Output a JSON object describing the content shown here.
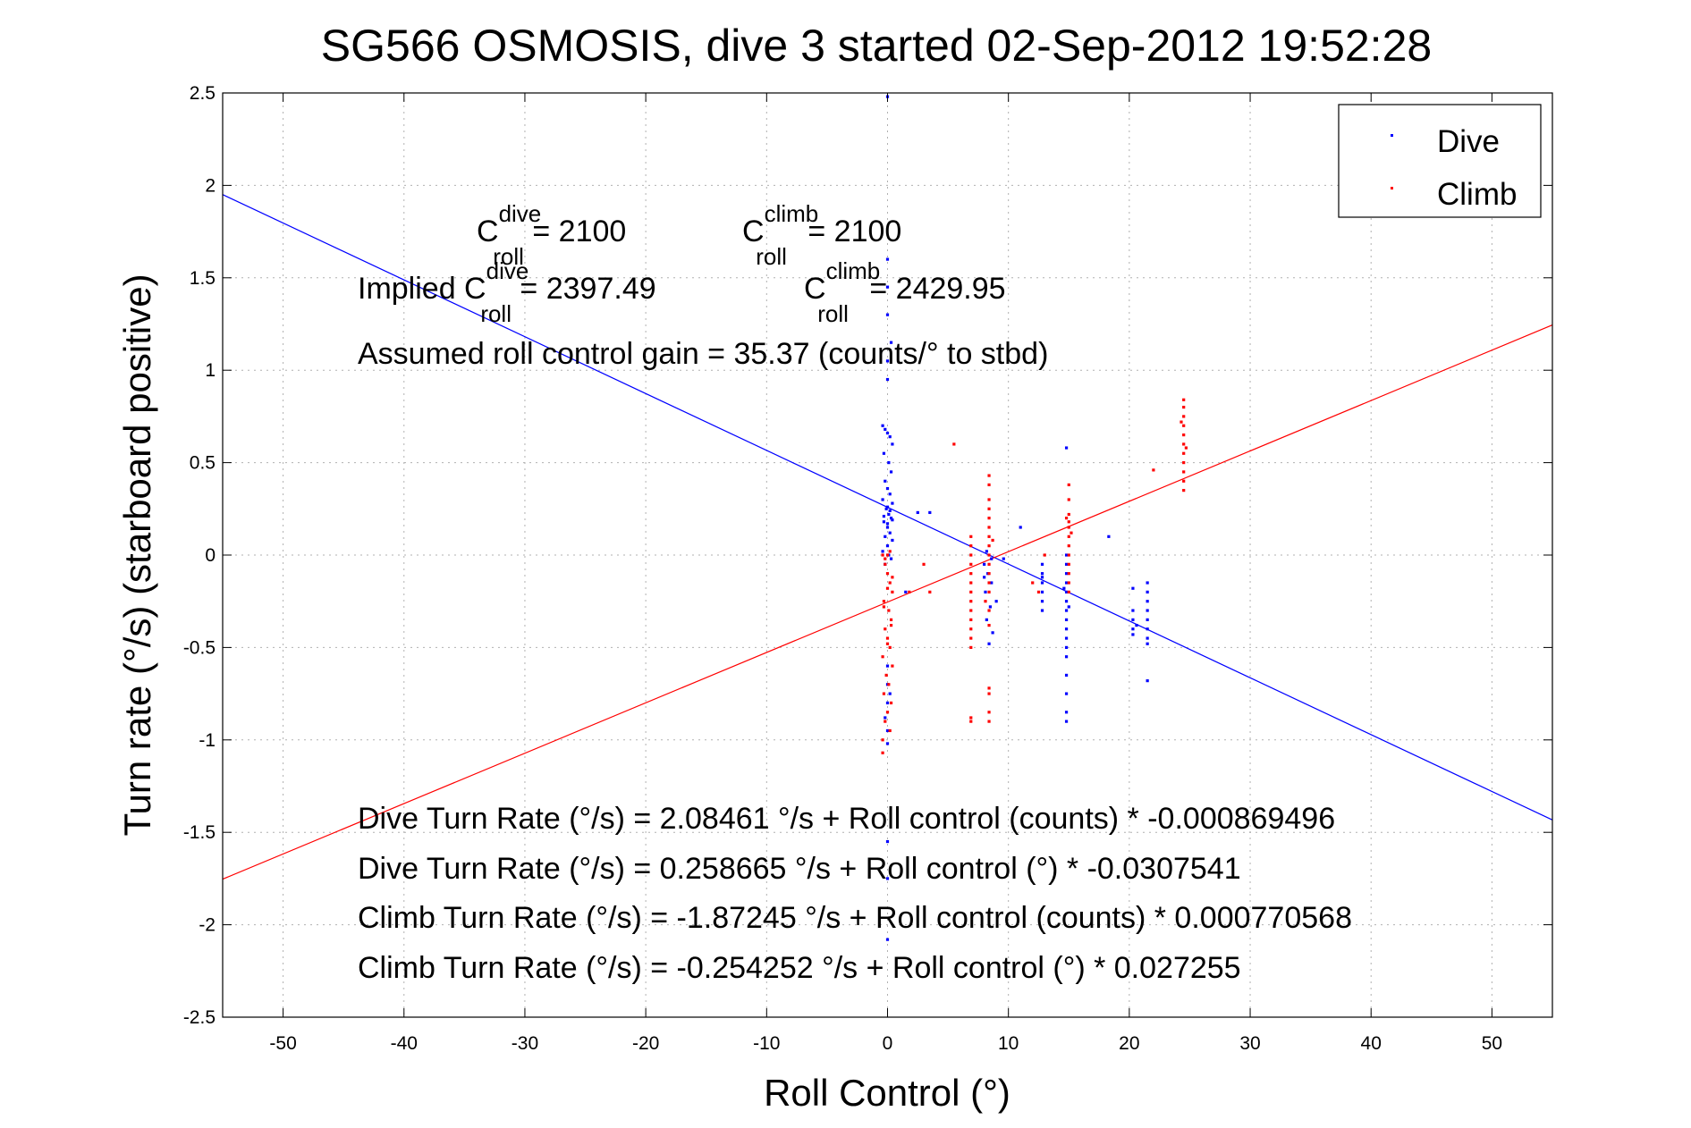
{
  "chart_data": {
    "type": "scatter",
    "title": "SG566 OSMOSIS, dive 3 started 02-Sep-2012 19:52:28",
    "xlabel": "Roll Control (°)",
    "ylabel": "Turn rate (°/s) (starboard positive)",
    "xlim": [
      -55,
      55
    ],
    "ylim": [
      -2.5,
      2.5
    ],
    "xticks": [
      "-50",
      "-40",
      "-30",
      "-20",
      "-10",
      "0",
      "10",
      "20",
      "30",
      "40",
      "50"
    ],
    "yticks": [
      "2.5",
      "2",
      "1.5",
      "1",
      "0.5",
      "0",
      "-0.5",
      "-1",
      "-1.5",
      "-2",
      "-2.5"
    ],
    "grid": true,
    "legend_position": "top-right",
    "series": [
      {
        "name": "Dive",
        "color": "#0000ff",
        "points": [
          [
            0,
            2.48
          ],
          [
            0,
            1.6
          ],
          [
            0,
            1.45
          ],
          [
            0,
            1.3
          ],
          [
            0.3,
            1.15
          ],
          [
            0,
            1.05
          ],
          [
            0,
            0.95
          ],
          [
            -0.4,
            0.7
          ],
          [
            -0.2,
            0.68
          ],
          [
            0,
            0.66
          ],
          [
            0.2,
            0.64
          ],
          [
            0.4,
            0.6
          ],
          [
            -0.3,
            0.55
          ],
          [
            0.1,
            0.5
          ],
          [
            0.3,
            0.45
          ],
          [
            -0.2,
            0.4
          ],
          [
            0,
            0.36
          ],
          [
            0.2,
            0.33
          ],
          [
            -0.4,
            0.3
          ],
          [
            0.4,
            0.28
          ],
          [
            -0.1,
            0.25
          ],
          [
            0.1,
            0.22
          ],
          [
            0.3,
            0.2
          ],
          [
            -0.3,
            0.18
          ],
          [
            0,
            0.15
          ],
          [
            0.2,
            0.12
          ],
          [
            -0.2,
            0.1
          ],
          [
            0.4,
            0.08
          ],
          [
            0,
            0.05
          ],
          [
            -0.4,
            0.02
          ],
          [
            0.1,
            0
          ],
          [
            0.3,
            -0.02
          ],
          [
            -0.2,
            -0.05
          ],
          [
            0,
            0.26
          ],
          [
            0.2,
            0.24
          ],
          [
            -0.3,
            0.21
          ],
          [
            0.4,
            0.19
          ],
          [
            0,
            0.17
          ],
          [
            0,
            -0.6
          ],
          [
            0,
            -0.7
          ],
          [
            0,
            -0.8
          ],
          [
            -0.2,
            -0.88
          ],
          [
            0,
            -0.95
          ],
          [
            0,
            -1.02
          ],
          [
            0.2,
            -0.75
          ],
          [
            0,
            -1.55
          ],
          [
            0,
            -1.75
          ],
          [
            0,
            -2.08
          ],
          [
            2.5,
            0.23
          ],
          [
            3.5,
            0.23
          ],
          [
            1.5,
            -0.2
          ],
          [
            8,
            -0.05
          ],
          [
            8.3,
            -0.1
          ],
          [
            8.6,
            -0.15
          ],
          [
            8.1,
            -0.2
          ],
          [
            8.5,
            -0.28
          ],
          [
            8.2,
            -0.35
          ],
          [
            8.7,
            -0.42
          ],
          [
            8.4,
            -0.48
          ],
          [
            8.6,
            -0.02
          ],
          [
            8.2,
            0.02
          ],
          [
            8,
            -0.12
          ],
          [
            9,
            -0.25
          ],
          [
            9.6,
            -0.02
          ],
          [
            11,
            0.15
          ],
          [
            12.8,
            -0.05
          ],
          [
            12.8,
            -0.1
          ],
          [
            12.8,
            -0.15
          ],
          [
            12.8,
            -0.2
          ],
          [
            12.8,
            -0.25
          ],
          [
            12.8,
            -0.3
          ],
          [
            12.8,
            -0.12
          ],
          [
            14.8,
            0.58
          ],
          [
            14.8,
            0.0
          ],
          [
            14.8,
            -0.05
          ],
          [
            14.8,
            -0.1
          ],
          [
            14.8,
            -0.15
          ],
          [
            14.8,
            -0.2
          ],
          [
            14.8,
            -0.25
          ],
          [
            14.8,
            -0.3
          ],
          [
            14.8,
            -0.35
          ],
          [
            14.8,
            -0.4
          ],
          [
            14.8,
            -0.45
          ],
          [
            14.8,
            -0.5
          ],
          [
            14.8,
            -0.55
          ],
          [
            14.8,
            -0.65
          ],
          [
            14.8,
            -0.75
          ],
          [
            14.8,
            -0.85
          ],
          [
            14.8,
            -0.9
          ],
          [
            14.6,
            -0.18
          ],
          [
            15,
            -0.28
          ],
          [
            18.3,
            0.1
          ],
          [
            20.3,
            -0.18
          ],
          [
            20.3,
            -0.3
          ],
          [
            20.3,
            -0.35
          ],
          [
            20.3,
            -0.4
          ],
          [
            20.3,
            -0.43
          ],
          [
            20.6,
            -0.38
          ],
          [
            21.5,
            -0.15
          ],
          [
            21.5,
            -0.2
          ],
          [
            21.5,
            -0.25
          ],
          [
            21.5,
            -0.3
          ],
          [
            21.5,
            -0.35
          ],
          [
            21.5,
            -0.4
          ],
          [
            21.5,
            -0.45
          ],
          [
            21.5,
            -0.48
          ],
          [
            21.5,
            -0.68
          ]
        ]
      },
      {
        "name": "Climb",
        "color": "#ff0000",
        "points": [
          [
            -0.4,
            -0.0
          ],
          [
            -0.2,
            -0.05
          ],
          [
            0,
            -0.1
          ],
          [
            0.2,
            -0.15
          ],
          [
            0.4,
            -0.2
          ],
          [
            -0.3,
            -0.25
          ],
          [
            0.1,
            -0.3
          ],
          [
            0.3,
            -0.35
          ],
          [
            -0.2,
            -0.4
          ],
          [
            0,
            -0.45
          ],
          [
            0.2,
            -0.5
          ],
          [
            -0.4,
            -0.55
          ],
          [
            0.4,
            -0.6
          ],
          [
            -0.1,
            -0.65
          ],
          [
            0.1,
            -0.7
          ],
          [
            -0.3,
            -0.75
          ],
          [
            0.3,
            -0.8
          ],
          [
            0,
            -0.85
          ],
          [
            -0.2,
            -0.9
          ],
          [
            0.2,
            -0.95
          ],
          [
            -0.4,
            -1.0
          ],
          [
            -0.4,
            -1.07
          ],
          [
            0,
            0.0
          ],
          [
            0.2,
            0.02
          ],
          [
            -0.2,
            -0.02
          ],
          [
            0.4,
            -0.12
          ],
          [
            0,
            -0.18
          ],
          [
            -0.3,
            -0.28
          ],
          [
            0.3,
            -0.38
          ],
          [
            0,
            -0.48
          ],
          [
            1.8,
            -0.2
          ],
          [
            3,
            -0.05
          ],
          [
            3.5,
            -0.2
          ],
          [
            5.5,
            0.6
          ],
          [
            6.9,
            0.1
          ],
          [
            6.9,
            0.05
          ],
          [
            6.9,
            0.0
          ],
          [
            6.9,
            -0.05
          ],
          [
            6.9,
            -0.1
          ],
          [
            6.9,
            -0.15
          ],
          [
            6.9,
            -0.2
          ],
          [
            6.9,
            -0.25
          ],
          [
            6.9,
            -0.3
          ],
          [
            6.9,
            -0.35
          ],
          [
            6.9,
            -0.4
          ],
          [
            6.9,
            -0.45
          ],
          [
            6.9,
            -0.5
          ],
          [
            6.9,
            -0.88
          ],
          [
            6.9,
            -0.9
          ],
          [
            8.4,
            0.43
          ],
          [
            8.4,
            0.38
          ],
          [
            8.4,
            0.3
          ],
          [
            8.4,
            0.25
          ],
          [
            8.4,
            0.2
          ],
          [
            8.4,
            0.15
          ],
          [
            8.4,
            0.1
          ],
          [
            8.4,
            0.05
          ],
          [
            8.4,
            0.0
          ],
          [
            8.4,
            -0.05
          ],
          [
            8.4,
            -0.1
          ],
          [
            8.4,
            -0.15
          ],
          [
            8.4,
            -0.2
          ],
          [
            8.4,
            -0.3
          ],
          [
            8.4,
            -0.38
          ],
          [
            8.4,
            -0.72
          ],
          [
            8.4,
            -0.75
          ],
          [
            8.4,
            -0.85
          ],
          [
            8.4,
            -0.9
          ],
          [
            8.1,
            -0.25
          ],
          [
            8.7,
            0.08
          ],
          [
            12,
            -0.15
          ],
          [
            12.5,
            -0.2
          ],
          [
            13,
            0.0
          ],
          [
            15,
            0.38
          ],
          [
            15,
            0.3
          ],
          [
            15,
            0.22
          ],
          [
            15,
            0.18
          ],
          [
            15,
            0.15
          ],
          [
            15,
            0.1
          ],
          [
            15,
            0.05
          ],
          [
            15,
            0.0
          ],
          [
            15,
            -0.05
          ],
          [
            15,
            -0.1
          ],
          [
            15,
            -0.15
          ],
          [
            15,
            -0.2
          ],
          [
            15.2,
            0.12
          ],
          [
            14.8,
            0.2
          ],
          [
            22,
            0.46
          ],
          [
            24.5,
            0.84
          ],
          [
            24.5,
            0.8
          ],
          [
            24.5,
            0.75
          ],
          [
            24.5,
            0.7
          ],
          [
            24.5,
            0.65
          ],
          [
            24.5,
            0.6
          ],
          [
            24.5,
            0.55
          ],
          [
            24.5,
            0.5
          ],
          [
            24.5,
            0.45
          ],
          [
            24.5,
            0.4
          ],
          [
            24.5,
            0.35
          ],
          [
            24.3,
            0.72
          ],
          [
            24.7,
            0.58
          ]
        ]
      }
    ],
    "fit_lines": [
      {
        "name": "Dive fit",
        "color": "#0000ff",
        "intercept": 0.258665,
        "slope": -0.0307541
      },
      {
        "name": "Climb fit",
        "color": "#ff0000",
        "intercept": -0.254252,
        "slope": 0.027255
      }
    ]
  },
  "annotations": {
    "croll_dive_base": "C",
    "croll_dive_sup": "dive",
    "croll_dive_sub": "roll",
    "croll_dive_val": " = 2100",
    "croll_climb_base": "C",
    "croll_climb_sup": "climb",
    "croll_climb_sub": "roll",
    "croll_climb_val": " = 2100",
    "implied_prefix": "Implied C",
    "implied_dive_sup": "dive",
    "implied_dive_sub": "roll",
    "implied_dive_val": " = 2397.49",
    "implied_climb_base": "C",
    "implied_climb_sup": "climb",
    "implied_climb_sub": "roll",
    "implied_climb_val": " = 2429.95",
    "gain_line": "Assumed roll control gain = 35.37 (counts/° to stbd)",
    "eq_lines": [
      "Dive Turn Rate (°/s) = 2.08461 °/s + Roll control (counts) * -0.000869496",
      "Dive Turn Rate (°/s) = 0.258665 °/s + Roll control (°) * -0.0307541",
      "Climb Turn Rate (°/s) = -1.87245 °/s + Roll control (counts) * 0.000770568",
      "Climb Turn Rate (°/s) = -0.254252 °/s + Roll control (°) * 0.027255"
    ]
  }
}
